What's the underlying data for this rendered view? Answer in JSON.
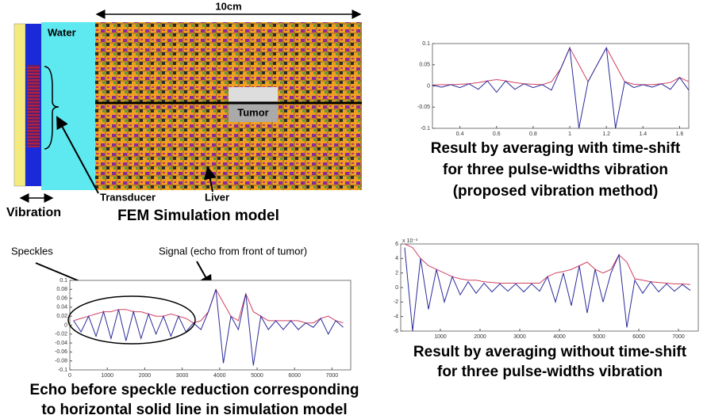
{
  "diagram": {
    "width_label": "10cm",
    "water": "Water",
    "tumor": "Tumor",
    "transducer": "Transducer",
    "liver": "Liver",
    "vibration": "Vibration",
    "caption": "FEM Simulation model"
  },
  "annotations": {
    "speckles": "Speckles",
    "signal": "Signal (echo from front of tumor)"
  },
  "chart_data": [
    {
      "type": "line",
      "caption": [
        "Result by averaging with time-shift",
        "for three pulse-widths vibration",
        "(proposed vibration method)"
      ],
      "x": [
        0.25,
        0.3,
        0.35,
        0.4,
        0.45,
        0.5,
        0.55,
        0.6,
        0.65,
        0.7,
        0.75,
        0.8,
        0.85,
        0.9,
        0.95,
        1.0,
        1.05,
        1.1,
        1.15,
        1.2,
        1.25,
        1.3,
        1.35,
        1.4,
        1.45,
        1.5,
        1.55,
        1.6,
        1.65
      ],
      "series": [
        {
          "color": "#2a2a9a",
          "values": [
            0.002,
            -0.003,
            0.003,
            -0.004,
            0.005,
            -0.008,
            0.012,
            -0.015,
            0.012,
            -0.008,
            0.005,
            -0.004,
            0.003,
            -0.01,
            0.04,
            0.09,
            -0.1,
            0.01,
            0.05,
            0.09,
            -0.1,
            0.01,
            -0.004,
            0.003,
            -0.003,
            0.005,
            -0.008,
            0.02,
            -0.01
          ]
        },
        {
          "color": "#d04060",
          "values": [
            0.002,
            0.003,
            0.003,
            0.004,
            0.005,
            0.008,
            0.012,
            0.015,
            0.012,
            0.008,
            0.005,
            0.004,
            0.003,
            0.01,
            0.04,
            0.09,
            0.05,
            0.01,
            0.05,
            0.09,
            0.05,
            0.01,
            0.004,
            0.003,
            0.003,
            0.005,
            0.008,
            0.02,
            0.01
          ]
        }
      ],
      "xlim": [
        0.25,
        1.65
      ],
      "xticks": [
        0.4,
        0.6,
        0.8,
        1,
        1.2,
        1.4,
        1.6
      ],
      "ylim": [
        -0.1,
        0.1
      ],
      "yticks": [
        0.1,
        0.05,
        0,
        -0.05,
        -0.1
      ]
    },
    {
      "type": "line",
      "caption": [
        "Echo before speckle reduction corresponding",
        "to horizontal solid line in simulation model"
      ],
      "x": [
        100,
        300,
        500,
        700,
        900,
        1100,
        1300,
        1500,
        1700,
        1900,
        2100,
        2300,
        2500,
        2700,
        2900,
        3100,
        3300,
        3500,
        3700,
        3900,
        4100,
        4300,
        4500,
        4700,
        4900,
        5100,
        5300,
        5500,
        5700,
        5900,
        6100,
        6300,
        6500,
        6700,
        6900,
        7100,
        7300
      ],
      "series": [
        {
          "color": "#2a2a9a",
          "values": [
            0.01,
            -0.015,
            0.02,
            -0.025,
            0.03,
            -0.03,
            0.035,
            -0.035,
            0.03,
            -0.03,
            0.025,
            -0.02,
            0.02,
            -0.025,
            0.02,
            -0.015,
            0.005,
            -0.01,
            0.03,
            0.08,
            -0.085,
            0.02,
            -0.01,
            0.07,
            -0.09,
            0.02,
            -0.01,
            0.01,
            -0.01,
            0.01,
            -0.01,
            0.005,
            -0.005,
            0.015,
            -0.02,
            0.01,
            -0.005
          ]
        },
        {
          "color": "#d04060",
          "values": [
            0.01,
            0.015,
            0.02,
            0.025,
            0.03,
            0.03,
            0.035,
            0.035,
            0.03,
            0.03,
            0.025,
            0.02,
            0.02,
            0.025,
            0.02,
            0.015,
            0.005,
            0.01,
            0.03,
            0.08,
            0.05,
            0.02,
            0.01,
            0.07,
            0.03,
            0.02,
            0.01,
            0.01,
            0.01,
            0.01,
            0.01,
            0.005,
            0.005,
            0.015,
            0.02,
            0.01,
            0.005
          ]
        }
      ],
      "xlim": [
        0,
        7500
      ],
      "xticks": [
        0,
        1000,
        2000,
        3000,
        4000,
        5000,
        6000,
        7000
      ],
      "ylim": [
        -0.1,
        0.1
      ],
      "yticks": [
        0.1,
        0.08,
        0.06,
        0.04,
        0.02,
        0,
        -0.02,
        -0.04,
        -0.06,
        -0.08,
        -0.1
      ]
    },
    {
      "type": "line",
      "caption": [
        "Result by averaging without time-shift",
        "for three pulse-widths vibration"
      ],
      "y_multiplier": "x 10⁻³",
      "x": [
        100,
        300,
        500,
        700,
        900,
        1100,
        1300,
        1500,
        1700,
        1900,
        2100,
        2300,
        2500,
        2700,
        2900,
        3100,
        3300,
        3500,
        3700,
        3900,
        4100,
        4300,
        4500,
        4700,
        4900,
        5100,
        5300,
        5500,
        5700,
        5900,
        6100,
        6300,
        6500,
        6700,
        6900,
        7100,
        7300
      ],
      "series": [
        {
          "color": "#2a2a9a",
          "values": [
            5.5,
            -6,
            4,
            -3,
            2.5,
            -2,
            1.5,
            -1,
            0.8,
            -0.8,
            0.6,
            -0.6,
            0.5,
            -0.5,
            0.5,
            -0.6,
            0.5,
            -0.5,
            1.5,
            -2,
            2,
            -2.5,
            3,
            -3.5,
            2.5,
            -2,
            2,
            4.5,
            -5.5,
            1,
            -0.8,
            0.8,
            -0.6,
            0.5,
            -0.5,
            0.4,
            -0.4
          ]
        },
        {
          "color": "#d04060",
          "values": [
            6,
            5.5,
            4,
            3,
            2.5,
            2,
            1.5,
            1.2,
            1,
            1,
            0.8,
            0.7,
            0.6,
            0.6,
            0.6,
            0.6,
            0.6,
            0.6,
            1.5,
            2,
            2.2,
            2.5,
            3,
            3.5,
            2.5,
            2,
            2.5,
            4.5,
            3.5,
            1.2,
            1,
            0.8,
            0.7,
            0.6,
            0.5,
            0.5,
            0.4
          ]
        }
      ],
      "xlim": [
        0,
        7500
      ],
      "xticks": [
        1000,
        2000,
        3000,
        4000,
        5000,
        6000,
        7000
      ],
      "ylim": [
        -6,
        6
      ],
      "yticks": [
        6,
        4,
        2,
        0,
        -2,
        -4,
        -6
      ]
    }
  ]
}
